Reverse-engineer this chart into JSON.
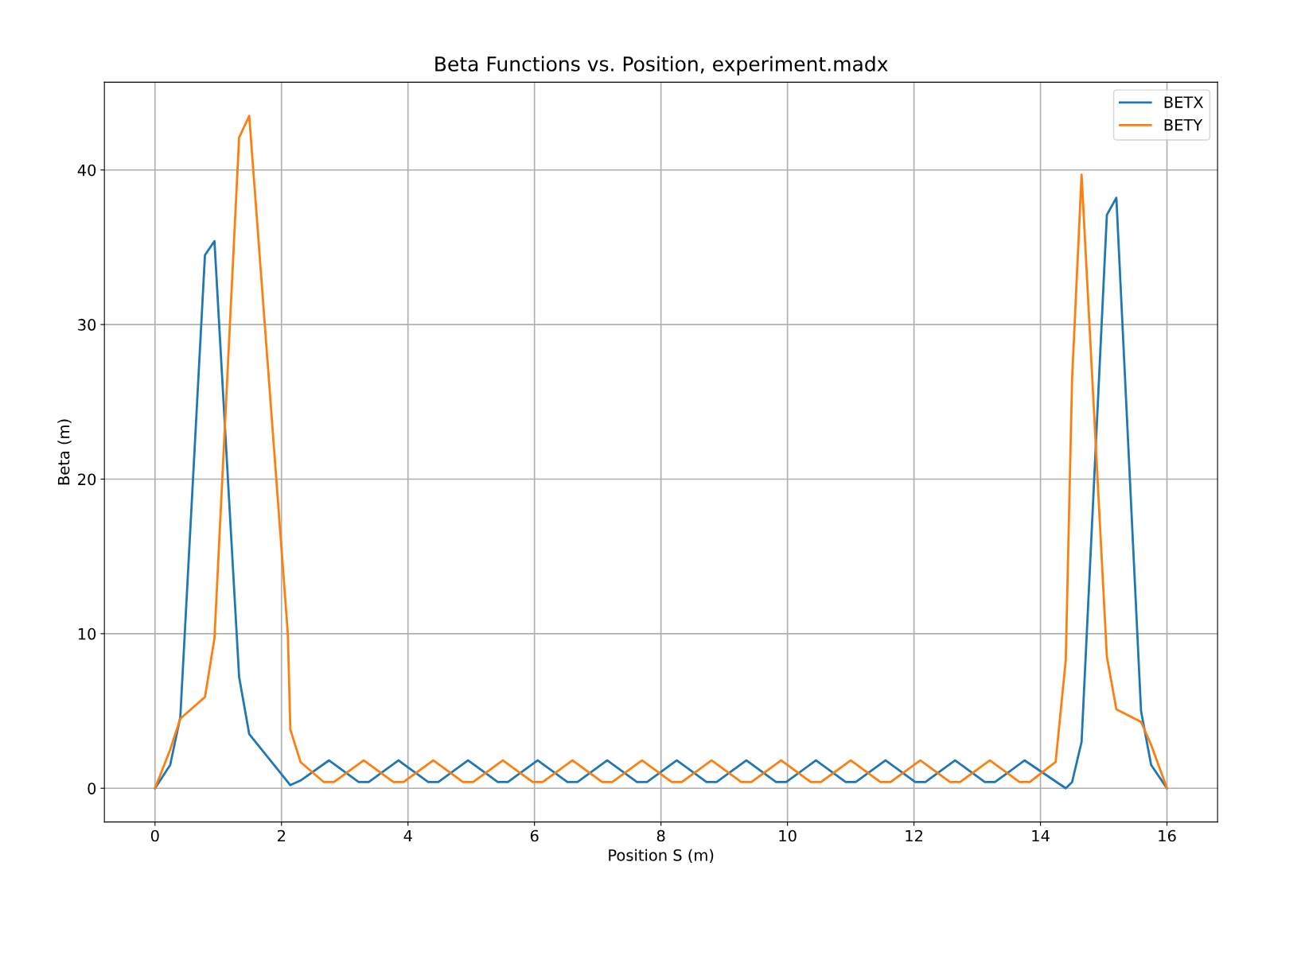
{
  "chart_data": {
    "type": "line",
    "title": "Beta Functions vs. Position, experiment.madx",
    "xlabel": "Position S (m)",
    "ylabel": "Beta (m)",
    "xlim": [
      -0.8,
      16.8
    ],
    "ylim": [
      -2.18,
      45.68
    ],
    "xticks": [
      0,
      2,
      4,
      6,
      8,
      10,
      12,
      14,
      16
    ],
    "yticks": [
      0,
      10,
      20,
      30,
      40
    ],
    "grid": true,
    "legend": "top right",
    "line_style": "solid",
    "marker": "none",
    "series": [
      {
        "name": "BETX",
        "color": "#1f77b4",
        "x": [
          0,
          0.24,
          0.4,
          0.79,
          0.94,
          1.33,
          1.49,
          2.14,
          2.3,
          2.75,
          3.22,
          3.38,
          3.85,
          4.32,
          4.48,
          4.95,
          5.42,
          5.58,
          6.05,
          6.52,
          6.68,
          7.15,
          7.62,
          7.78,
          8.25,
          8.72,
          8.88,
          9.35,
          9.82,
          9.98,
          10.45,
          10.92,
          11.08,
          11.55,
          12.02,
          12.18,
          12.65,
          13.12,
          13.28,
          13.75,
          14.4,
          14.5,
          14.65,
          15.05,
          15.2,
          15.59,
          15.75,
          16
        ],
        "values": [
          0,
          1.5,
          4.6,
          34.5,
          35.4,
          7.2,
          3.5,
          0.2,
          0.5,
          1.8,
          0.4,
          0.4,
          1.8,
          0.4,
          0.4,
          1.8,
          0.4,
          0.4,
          1.8,
          0.4,
          0.4,
          1.8,
          0.4,
          0.4,
          1.8,
          0.4,
          0.4,
          1.8,
          0.4,
          0.4,
          1.8,
          0.4,
          0.4,
          1.8,
          0.4,
          0.4,
          1.8,
          0.4,
          0.4,
          1.8,
          0,
          0.4,
          3,
          37.1,
          38.2,
          5,
          1.5,
          0
        ]
      },
      {
        "name": "BETY",
        "color": "#ff7f0e",
        "x": [
          0,
          0.24,
          0.4,
          0.79,
          0.94,
          1.33,
          1.49,
          2.1,
          2.14,
          2.3,
          2.67,
          2.83,
          3.3,
          3.77,
          3.93,
          4.4,
          4.87,
          5.03,
          5.5,
          5.97,
          6.13,
          6.6,
          7.07,
          7.23,
          7.7,
          8.17,
          8.33,
          8.8,
          9.27,
          9.43,
          9.9,
          10.37,
          10.53,
          11,
          11.47,
          11.63,
          12.1,
          12.57,
          12.73,
          13.2,
          13.67,
          13.83,
          14.24,
          14.4,
          14.5,
          14.65,
          15.05,
          15.2,
          15.59,
          15.75,
          16
        ],
        "values": [
          0,
          2.5,
          4.5,
          5.9,
          9.7,
          42.1,
          43.5,
          10,
          3.8,
          1.7,
          0.4,
          0.4,
          1.8,
          0.4,
          0.4,
          1.8,
          0.4,
          0.4,
          1.8,
          0.4,
          0.4,
          1.8,
          0.4,
          0.4,
          1.8,
          0.4,
          0.4,
          1.8,
          0.4,
          0.4,
          1.8,
          0.4,
          0.4,
          1.8,
          0.4,
          0.4,
          1.8,
          0.4,
          0.4,
          1.8,
          0.4,
          0.4,
          1.7,
          8.3,
          26.5,
          39.7,
          8.5,
          5.1,
          4.3,
          2.8,
          0
        ]
      }
    ]
  }
}
